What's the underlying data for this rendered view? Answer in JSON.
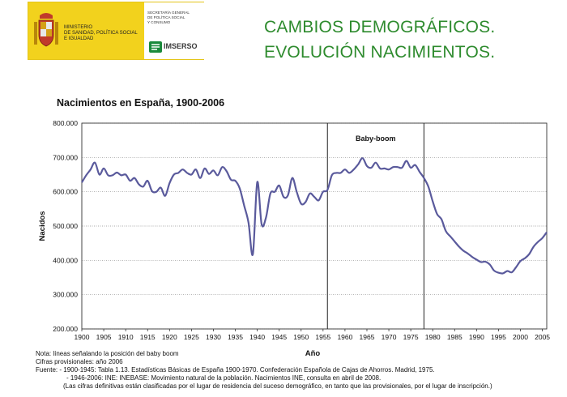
{
  "header": {
    "ministry_lines": [
      "MINISTERIO",
      "DE SANIDAD, POLÍTICA SOCIAL",
      "E IGUALDAD"
    ],
    "secretaria_lines": [
      "SECRETARÍA GENERAL",
      "DE POLÍTICA SOCIAL",
      "Y CONSUMO"
    ],
    "imserso_label": "IMSERSO",
    "colors": {
      "brand_yellow": "#f2d21d",
      "imserso_green": "#1a8a3c"
    }
  },
  "slide": {
    "title_line1": "CAMBIOS DEMOGRÁFICOS.",
    "title_line2": "EVOLUCIÓN NACIMIENTOS.",
    "title_color": "#2e8b2e"
  },
  "chart_data": {
    "type": "line",
    "title": "Nacimientos en España, 1900-2006",
    "xlabel": "Año",
    "ylabel": "Nacidos",
    "xlim": [
      1900,
      2006
    ],
    "ylim": [
      200000,
      800000
    ],
    "grid": "horizontal",
    "x_ticks": [
      1900,
      1905,
      1910,
      1915,
      1920,
      1925,
      1930,
      1935,
      1940,
      1945,
      1950,
      1955,
      1960,
      1965,
      1970,
      1975,
      1980,
      1985,
      1990,
      1995,
      2000,
      2005
    ],
    "y_ticks": [
      200000,
      300000,
      400000,
      500000,
      600000,
      700000,
      800000
    ],
    "y_tick_labels": [
      "200.000",
      "300.000",
      "400.000",
      "500.000",
      "600.000",
      "700.000",
      "800.000"
    ],
    "series_color": "#5a5a9c",
    "vertical_lines": [
      1956,
      1978
    ],
    "annotation": "Baby-boom",
    "x": [
      1900,
      1901,
      1902,
      1903,
      1904,
      1905,
      1906,
      1907,
      1908,
      1909,
      1910,
      1911,
      1912,
      1913,
      1914,
      1915,
      1916,
      1917,
      1918,
      1919,
      1920,
      1921,
      1922,
      1923,
      1924,
      1925,
      1926,
      1927,
      1928,
      1929,
      1930,
      1931,
      1932,
      1933,
      1934,
      1935,
      1936,
      1937,
      1938,
      1939,
      1940,
      1941,
      1942,
      1943,
      1944,
      1945,
      1946,
      1947,
      1948,
      1949,
      1950,
      1951,
      1952,
      1953,
      1954,
      1955,
      1956,
      1957,
      1958,
      1959,
      1960,
      1961,
      1962,
      1963,
      1964,
      1965,
      1966,
      1967,
      1968,
      1969,
      1970,
      1971,
      1972,
      1973,
      1974,
      1975,
      1976,
      1977,
      1978,
      1979,
      1980,
      1981,
      1982,
      1983,
      1984,
      1985,
      1986,
      1987,
      1988,
      1989,
      1990,
      1991,
      1992,
      1993,
      1994,
      1995,
      1996,
      1997,
      1998,
      1999,
      2000,
      2001,
      2002,
      2003,
      2004,
      2005,
      2006
    ],
    "values": [
      627000,
      648000,
      665000,
      685000,
      650000,
      668000,
      648000,
      648000,
      656000,
      648000,
      650000,
      632000,
      640000,
      622000,
      615000,
      632000,
      602000,
      600000,
      612000,
      588000,
      625000,
      650000,
      655000,
      665000,
      655000,
      650000,
      665000,
      640000,
      668000,
      652000,
      662000,
      648000,
      672000,
      660000,
      635000,
      632000,
      610000,
      560000,
      510000,
      418000,
      628000,
      505000,
      525000,
      595000,
      600000,
      618000,
      585000,
      590000,
      640000,
      600000,
      565000,
      570000,
      595000,
      585000,
      575000,
      600000,
      605000,
      648000,
      655000,
      655000,
      665000,
      655000,
      665000,
      680000,
      698000,
      675000,
      670000,
      685000,
      668000,
      668000,
      665000,
      672000,
      672000,
      670000,
      690000,
      670000,
      678000,
      658000,
      640000,
      615000,
      572000,
      535000,
      520000,
      485000,
      470000,
      455000,
      440000,
      428000,
      420000,
      410000,
      402000,
      395000,
      396000,
      388000,
      370000,
      364000,
      362000,
      369000,
      365000,
      380000,
      398000,
      406000,
      418000,
      440000,
      454000,
      465000,
      482000
    ]
  },
  "notes": {
    "line1": "Nota: líneas señalando la posición del baby boom",
    "line2": "Cifras provisionales: año 2006",
    "line3": "Fuente:  - 1900-1945:  Tabla 1.13. Estadísticas Básicas de España 1900-1970. Confederación Española de Cajas de Ahorros. Madrid, 1975.",
    "line4": "- 1946-2006: INE: INEBASE: Movimiento natural de la población. Nacimientos INE, consulta en abril de 2008.",
    "line5": "(Las cifras definitivas están clasificadas por el lugar de residencia del suceso demográfico, en tanto que las provisionales, por el lugar de inscripción.)"
  }
}
